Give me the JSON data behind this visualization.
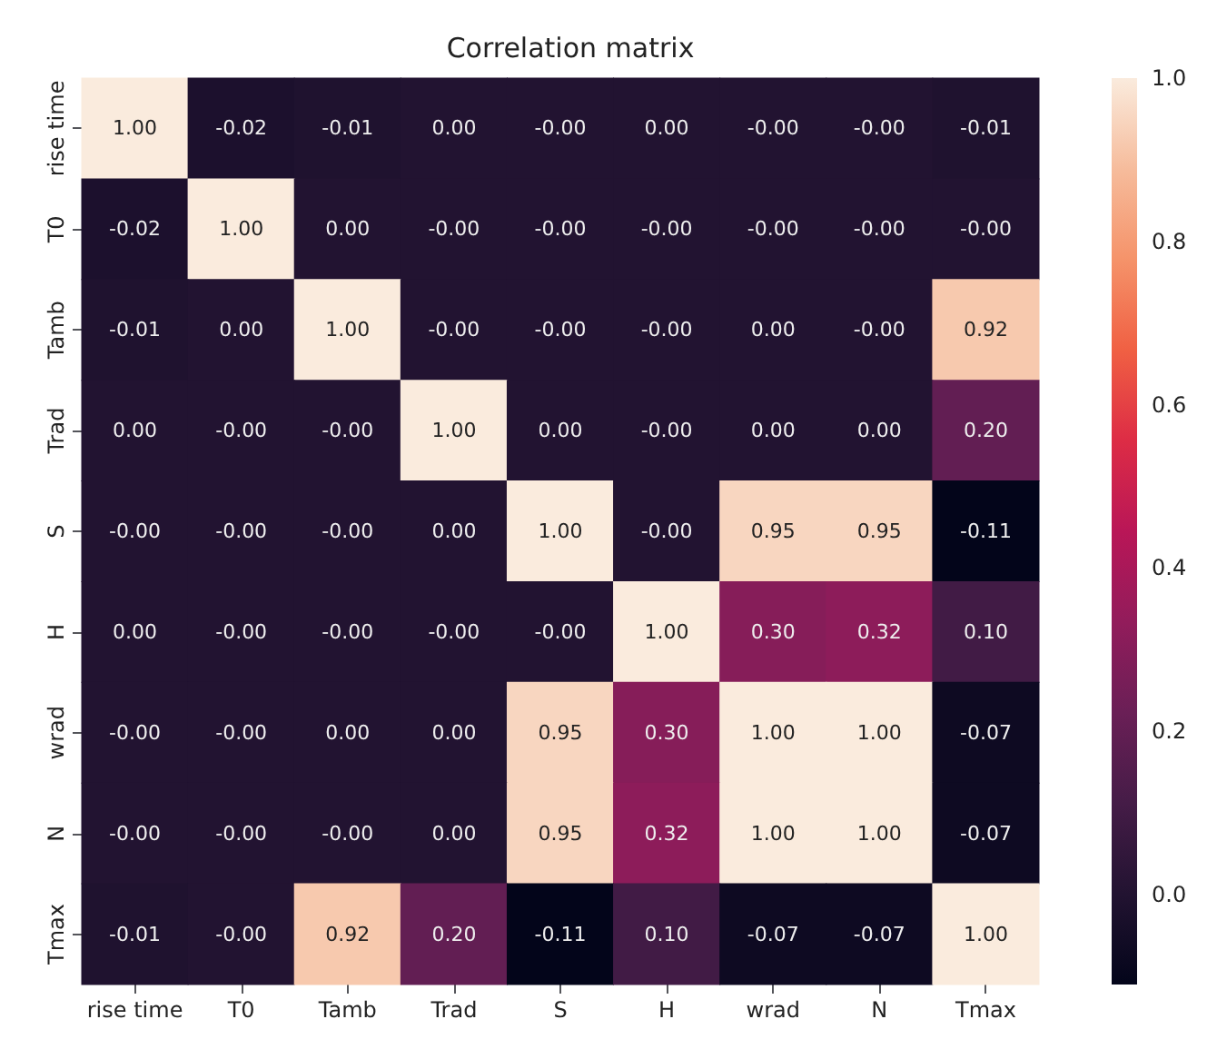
{
  "chart_data": {
    "type": "heatmap",
    "title": "Correlation matrix",
    "categories": [
      "rise time",
      "T0",
      "Tamb",
      "Trad",
      "S",
      "H",
      "wrad",
      "N",
      "Tmax"
    ],
    "y_categories": [
      "rise time",
      "T0",
      "Tamb",
      "Trad",
      "S",
      "H",
      "wrad",
      "N",
      "Tmax"
    ],
    "cells": [
      [
        1.0,
        -0.02,
        -0.01,
        0.0,
        0.0,
        0.0,
        0.0,
        0.0,
        -0.01
      ],
      [
        -0.02,
        1.0,
        0.0,
        0.0,
        0.0,
        0.0,
        0.0,
        0.0,
        0.0
      ],
      [
        -0.01,
        0.0,
        1.0,
        0.0,
        0.0,
        0.0,
        0.0,
        0.0,
        0.92
      ],
      [
        0.0,
        0.0,
        0.0,
        1.0,
        0.0,
        0.0,
        0.0,
        0.0,
        0.2
      ],
      [
        0.0,
        0.0,
        0.0,
        0.0,
        1.0,
        0.0,
        0.95,
        0.95,
        -0.11
      ],
      [
        0.0,
        0.0,
        0.0,
        0.0,
        0.0,
        1.0,
        0.3,
        0.32,
        0.1
      ],
      [
        0.0,
        0.0,
        0.0,
        0.0,
        0.95,
        0.3,
        1.0,
        1.0,
        -0.07
      ],
      [
        0.0,
        0.0,
        0.0,
        0.0,
        0.95,
        0.32,
        1.0,
        1.0,
        -0.07
      ],
      [
        -0.01,
        0.0,
        0.92,
        0.2,
        -0.11,
        0.1,
        -0.07,
        -0.07,
        1.0
      ]
    ],
    "cell_labels": [
      [
        "1.00",
        "-0.02",
        "-0.01",
        "0.00",
        "-0.00",
        "0.00",
        "-0.00",
        "-0.00",
        "-0.01"
      ],
      [
        "-0.02",
        "1.00",
        "0.00",
        "-0.00",
        "-0.00",
        "-0.00",
        "-0.00",
        "-0.00",
        "-0.00"
      ],
      [
        "-0.01",
        "0.00",
        "1.00",
        "-0.00",
        "-0.00",
        "-0.00",
        "0.00",
        "-0.00",
        "0.92"
      ],
      [
        "0.00",
        "-0.00",
        "-0.00",
        "1.00",
        "0.00",
        "-0.00",
        "0.00",
        "0.00",
        "0.20"
      ],
      [
        "-0.00",
        "-0.00",
        "-0.00",
        "0.00",
        "1.00",
        "-0.00",
        "0.95",
        "0.95",
        "-0.11"
      ],
      [
        "0.00",
        "-0.00",
        "-0.00",
        "-0.00",
        "-0.00",
        "1.00",
        "0.30",
        "0.32",
        "0.10"
      ],
      [
        "-0.00",
        "-0.00",
        "0.00",
        "0.00",
        "0.95",
        "0.30",
        "1.00",
        "1.00",
        "-0.07"
      ],
      [
        "-0.00",
        "-0.00",
        "-0.00",
        "0.00",
        "0.95",
        "0.32",
        "1.00",
        "1.00",
        "-0.07"
      ],
      [
        "-0.01",
        "-0.00",
        "0.92",
        "0.20",
        "-0.11",
        "0.10",
        "-0.07",
        "-0.07",
        "1.00"
      ]
    ],
    "clim": [
      -0.11,
      1.0
    ],
    "cticks": [
      {
        "value": 0.0,
        "label": "0.0"
      },
      {
        "value": 0.2,
        "label": "0.2"
      },
      {
        "value": 0.4,
        "label": "0.4"
      },
      {
        "value": 0.6,
        "label": "0.6"
      },
      {
        "value": 0.8,
        "label": "0.8"
      },
      {
        "value": 1.0,
        "label": "1.0"
      }
    ]
  }
}
